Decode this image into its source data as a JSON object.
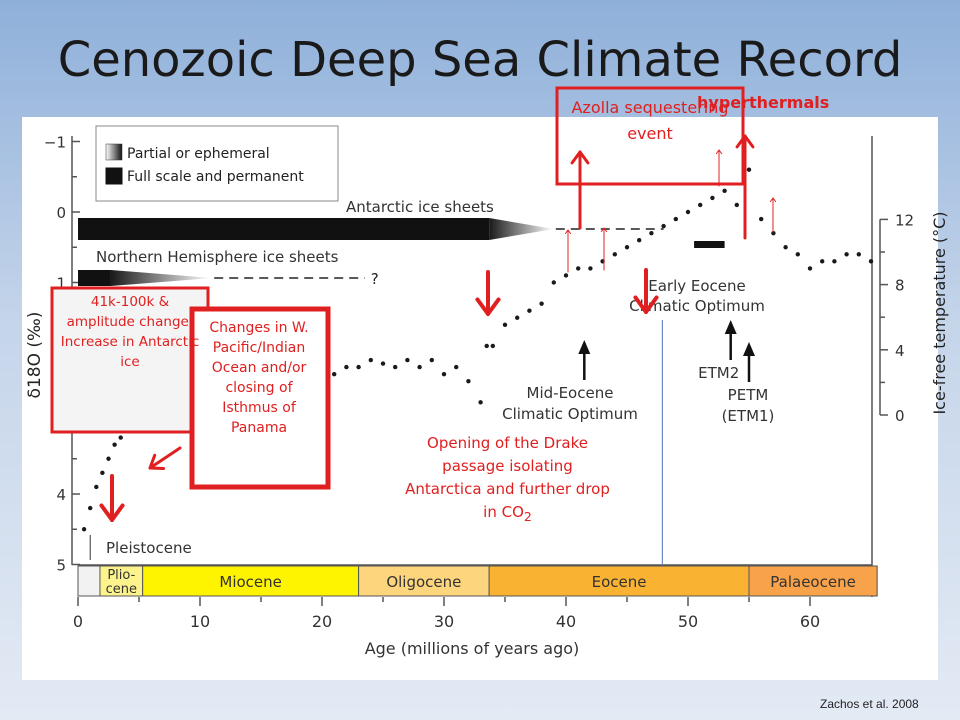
{
  "slide": {
    "title": "Cenozoic Deep Sea Climate Record",
    "citation": "Zachos et al. 2008"
  },
  "chart_data": {
    "type": "scatter",
    "xlabel": "Age (millions of years ago)",
    "ylabel": "δ18O (‰)",
    "y2label": "Ice-free temperature (°C)",
    "xlim": [
      0,
      65.5
    ],
    "ylim": [
      -1,
      5
    ],
    "y_inverted": true,
    "x_ticks": [
      0,
      10,
      20,
      30,
      40,
      50,
      60
    ],
    "y_ticks": [
      -1,
      0,
      1,
      2,
      3,
      4,
      5
    ],
    "y2_ticks": [
      0,
      4,
      8,
      12
    ],
    "legend": [
      {
        "label": "Partial or ephemeral",
        "style": "gradient"
      },
      {
        "label": "Full scale and permanent",
        "style": "solid"
      }
    ],
    "ice_sheets": [
      {
        "label": "Antarctic ice sheets",
        "full_from": 0,
        "full_to": 33.7,
        "partial_to": 39,
        "dashed_to": 48
      },
      {
        "label": "Northern Hemisphere ice sheets",
        "full_from": 0,
        "full_to": 2.7,
        "partial_to": 11,
        "dashed_to": 23.5,
        "uncertain_label": "?"
      }
    ],
    "epochs": [
      {
        "name": "Plio-\ncene",
        "from": 1.8,
        "to": 5.3,
        "color": "#fdf38c"
      },
      {
        "name": "Miocene",
        "from": 5.3,
        "to": 23,
        "color": "#fff400"
      },
      {
        "name": "Oligocene",
        "from": 23,
        "to": 33.7,
        "color": "#fdd57c"
      },
      {
        "name": "Eocene",
        "from": 33.7,
        "to": 55,
        "color": "#f9b232"
      },
      {
        "name": "Palaeocene",
        "from": 55,
        "to": 65.5,
        "color": "#f8a24a"
      }
    ],
    "data_series": {
      "name": "",
      "x": [
        0.5,
        1,
        1.5,
        2,
        2.5,
        3,
        3.5,
        4,
        4.5,
        5,
        6,
        7,
        8,
        9,
        10,
        11,
        12,
        13,
        14,
        15,
        16,
        17,
        18,
        19,
        20,
        21,
        22,
        23,
        24,
        25,
        26,
        27,
        28,
        29,
        30,
        31,
        32,
        33,
        33.5,
        34,
        35,
        36,
        37,
        38,
        39,
        40,
        41,
        42,
        43,
        44,
        45,
        46,
        47,
        48,
        49,
        50,
        51,
        52,
        53,
        54,
        55,
        56,
        57,
        58,
        59,
        60,
        61,
        62,
        63,
        64,
        65
      ],
      "y": [
        4.5,
        4.2,
        3.9,
        3.7,
        3.5,
        3.3,
        3.2,
        3.1,
        3.0,
        2.9,
        2.95,
        3.0,
        2.95,
        2.85,
        2.8,
        2.6,
        2.4,
        2.1,
        2.0,
        1.9,
        1.85,
        1.9,
        2.0,
        2.1,
        2.15,
        2.3,
        2.2,
        2.2,
        2.1,
        2.15,
        2.2,
        2.1,
        2.2,
        2.1,
        2.3,
        2.2,
        2.4,
        2.7,
        1.9,
        1.9,
        1.6,
        1.5,
        1.4,
        1.3,
        1.0,
        0.9,
        0.8,
        0.8,
        0.7,
        0.6,
        0.5,
        0.4,
        0.3,
        0.2,
        0.1,
        0.0,
        -0.1,
        -0.2,
        -0.3,
        -0.1,
        -0.6,
        0.1,
        0.3,
        0.5,
        0.6,
        0.8,
        0.7,
        0.7,
        0.6,
        0.6,
        0.7
      ]
    },
    "annotations": [
      {
        "label": "Pleistocene",
        "x": 1
      },
      {
        "label": "Mid-Eocene\nClimatic Optimum",
        "x": 41.5
      },
      {
        "label": "Early Eocene\nClimatic Optimum",
        "x": 52,
        "range": [
          50.5,
          53
        ]
      },
      {
        "label": "ETM2",
        "x": 53.5
      },
      {
        "label": "PETM\n(ETM1)",
        "x": 55
      }
    ],
    "vertical_line_x": 47.9
  },
  "callouts": {
    "azolla": "Azolla sequestering event",
    "hyperthermals": "hyperthermals",
    "box_41k": "41k-100k & amplitude change: Increase in Antarctic ice",
    "box_pacific": "Changes in W. Pacific/Indian Ocean and/or closing of Isthmus of Panama",
    "drake": "Opening of the Drake passage isolating Antarctica and further drop in CO",
    "drake_sub": "2"
  },
  "colors": {
    "callout_red": "#e02020",
    "data_points": "#1a1a1a",
    "vertical_line": "#6a8cc8"
  }
}
